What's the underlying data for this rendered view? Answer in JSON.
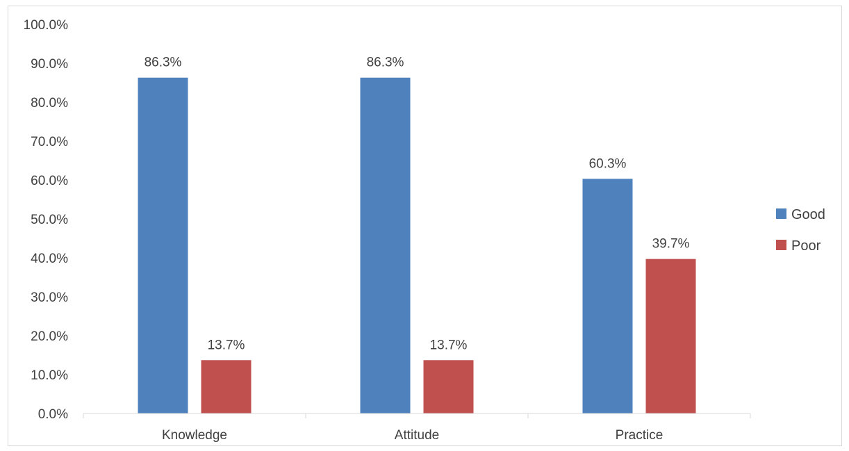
{
  "chart_data": {
    "type": "bar",
    "categories": [
      "Knowledge",
      "Attitude",
      "Practice"
    ],
    "series": [
      {
        "name": "Good",
        "color": "#4f81bd",
        "values": [
          86.3,
          86.3,
          60.3
        ],
        "labels": [
          "86.3%",
          "86.3%",
          "60.3%"
        ]
      },
      {
        "name": "Poor",
        "color": "#c0504d",
        "values": [
          13.7,
          13.7,
          39.7
        ],
        "labels": [
          "13.7%",
          "13.7%",
          "39.7%"
        ]
      }
    ],
    "yticks": [
      "0.0%",
      "10.0%",
      "20.0%",
      "30.0%",
      "40.0%",
      "50.0%",
      "60.0%",
      "70.0%",
      "80.0%",
      "90.0%",
      "100.0%"
    ],
    "ylim": [
      0,
      100
    ],
    "grid": false,
    "legend": "right"
  }
}
